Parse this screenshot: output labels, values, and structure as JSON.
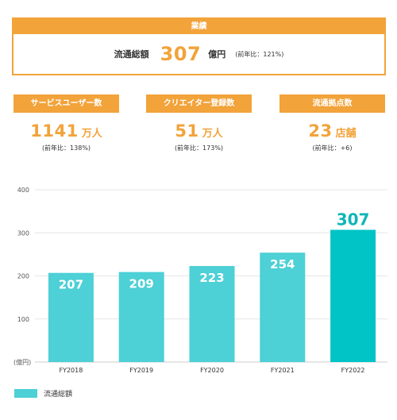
{
  "summary": {
    "header": "業績",
    "label": "流通総額",
    "value": "307",
    "unit": "億円",
    "note": "(前年比：121%)"
  },
  "kpis": [
    {
      "title": "サービスユーザー数",
      "value": "1141",
      "unit": "万人",
      "note": "(前年比：138%)"
    },
    {
      "title": "クリエイター登録数",
      "value": "51",
      "unit": "万人",
      "note": "(前年比：173%)"
    },
    {
      "title": "流通拠点数",
      "value": "23",
      "unit": "店舗",
      "note": "(前年比：+6)"
    }
  ],
  "colors": {
    "accent": "#f2a33a",
    "bar": "#4dd0d6",
    "bar_highlight": "#00c4c6",
    "highlight_label": "#0fb5b8"
  },
  "chart_data": {
    "type": "bar",
    "categories": [
      "FY2018",
      "FY2019",
      "FY2020",
      "FY2021",
      "FY2022"
    ],
    "series": [
      {
        "name": "流通総額",
        "values": [
          207,
          209,
          223,
          254,
          307
        ]
      }
    ],
    "ylim": [
      0,
      400
    ],
    "yticks": [
      100,
      200,
      300,
      400
    ],
    "ylabel": "(億円)",
    "highlight_index": 4,
    "grid": true,
    "legend": "bottom-left"
  }
}
